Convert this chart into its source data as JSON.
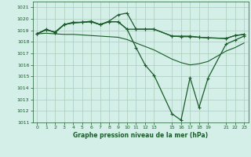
{
  "background_color": "#d4eee8",
  "grid_color": "#aaccbb",
  "line_color": "#1a5c2a",
  "title": "Graphe pression niveau de la mer (hPa)",
  "ylim": [
    1011,
    1021.5
  ],
  "xlim": [
    -0.5,
    23.5
  ],
  "yticks": [
    1011,
    1012,
    1013,
    1014,
    1015,
    1016,
    1017,
    1018,
    1019,
    1020,
    1021
  ],
  "xtick_positions": [
    0,
    1,
    2,
    3,
    4,
    5,
    6,
    7,
    8,
    9,
    10,
    11,
    12,
    13,
    15,
    16,
    17,
    18,
    19,
    21,
    22,
    23
  ],
  "xtick_labels": [
    "0",
    "1",
    "2",
    "3",
    "4",
    "5",
    "6",
    "7",
    "8",
    "9",
    "10",
    "11",
    "12",
    "13",
    "15",
    "16",
    "17",
    "18",
    "19",
    "21",
    "22",
    "23"
  ],
  "series": [
    {
      "x": [
        0,
        1,
        2,
        3,
        4,
        5,
        6,
        7,
        8,
        9,
        10,
        11,
        12,
        13,
        15,
        16,
        17,
        18,
        19,
        21,
        22,
        23
      ],
      "y": [
        1018.7,
        1019.1,
        1018.8,
        1019.5,
        1019.7,
        1019.7,
        1019.8,
        1019.5,
        1019.8,
        1020.35,
        1020.5,
        1019.1,
        1019.1,
        1019.1,
        1018.5,
        1018.5,
        1018.5,
        1018.4,
        1018.35,
        1018.3,
        1018.55,
        1018.65
      ],
      "marker": true,
      "lw": 0.9
    },
    {
      "x": [
        0,
        1,
        2,
        3,
        4,
        5,
        6,
        7,
        8,
        9,
        10,
        11,
        12,
        13,
        15,
        16,
        17,
        18,
        19,
        21,
        22,
        23
      ],
      "y": [
        1018.7,
        1019.05,
        1018.85,
        1019.5,
        1019.65,
        1019.7,
        1019.75,
        1019.5,
        1019.75,
        1019.75,
        1019.1,
        1019.1,
        1019.1,
        1019.1,
        1018.5,
        1018.45,
        1018.45,
        1018.4,
        1018.35,
        1018.3,
        1018.55,
        1018.65
      ],
      "marker": true,
      "lw": 0.9
    },
    {
      "x": [
        0,
        1,
        2,
        3,
        4,
        5,
        6,
        7,
        8,
        9,
        10,
        11,
        12,
        13,
        15,
        16,
        17,
        18,
        19,
        21,
        22,
        23
      ],
      "y": [
        1018.7,
        1019.05,
        1018.85,
        1019.5,
        1019.65,
        1019.7,
        1019.75,
        1019.5,
        1019.75,
        1019.75,
        1019.1,
        1017.5,
        1016.0,
        1015.1,
        1011.75,
        1011.2,
        1014.9,
        1012.3,
        1014.85,
        1017.8,
        1018.15,
        1018.5
      ],
      "marker": true,
      "lw": 0.9
    },
    {
      "x": [
        0,
        1,
        2,
        3,
        4,
        5,
        6,
        7,
        8,
        9,
        10,
        11,
        12,
        13,
        15,
        16,
        17,
        18,
        19,
        21,
        22,
        23
      ],
      "y": [
        1018.7,
        1018.75,
        1018.7,
        1018.65,
        1018.65,
        1018.6,
        1018.55,
        1018.5,
        1018.45,
        1018.4,
        1018.2,
        1017.9,
        1017.6,
        1017.3,
        1016.5,
        1016.2,
        1016.0,
        1016.1,
        1016.3,
        1017.2,
        1017.5,
        1017.9
      ],
      "marker": false,
      "lw": 0.8
    }
  ]
}
